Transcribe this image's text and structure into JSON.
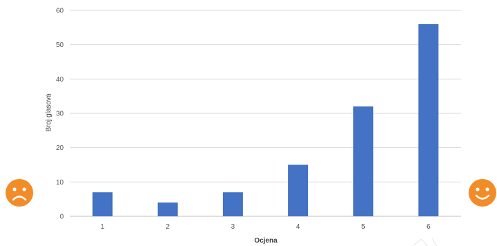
{
  "chart_data": {
    "type": "bar",
    "categories": [
      "1",
      "2",
      "3",
      "4",
      "5",
      "6"
    ],
    "values": [
      7,
      4,
      7,
      15,
      32,
      56
    ],
    "xlabel": "Ocjena",
    "ylabel": "Broj glasova",
    "ylim": [
      0,
      60
    ],
    "yticks": [
      0,
      10,
      20,
      30,
      40,
      50,
      60
    ],
    "grid": true,
    "bar_color": "#4472C4"
  },
  "decorations": {
    "left_icon": "sad-face-icon",
    "right_icon": "happy-face-icon",
    "icon_color": "#F28C28"
  }
}
